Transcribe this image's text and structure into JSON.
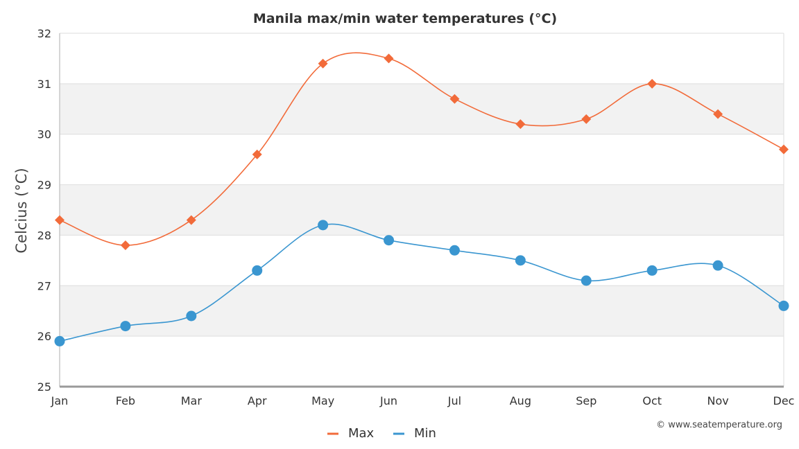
{
  "chart_data": {
    "type": "line",
    "title": "Manila max/min water temperatures (°C)",
    "xlabel": "",
    "ylabel": "Celcius (°C)",
    "categories": [
      "Jan",
      "Feb",
      "Mar",
      "Apr",
      "May",
      "Jun",
      "Jul",
      "Aug",
      "Sep",
      "Oct",
      "Nov",
      "Dec"
    ],
    "ylim": [
      25,
      32
    ],
    "yticks": [
      "25",
      "26",
      "27",
      "28",
      "29",
      "30",
      "31",
      "32"
    ],
    "series": [
      {
        "name": "Max",
        "color": "#f26b3a",
        "marker": "diamond",
        "values": [
          28.3,
          27.8,
          28.3,
          29.6,
          31.4,
          31.5,
          30.7,
          30.2,
          30.3,
          31.0,
          30.4,
          29.7
        ]
      },
      {
        "name": "Min",
        "color": "#3a96d0",
        "marker": "circle",
        "values": [
          25.9,
          26.2,
          26.4,
          27.3,
          28.2,
          27.9,
          27.7,
          27.5,
          27.1,
          27.3,
          27.4,
          26.6
        ]
      }
    ],
    "grid": true,
    "alternating_bands": true,
    "legend_position": "bottom-center",
    "credit": "© www.seatemperature.org"
  }
}
